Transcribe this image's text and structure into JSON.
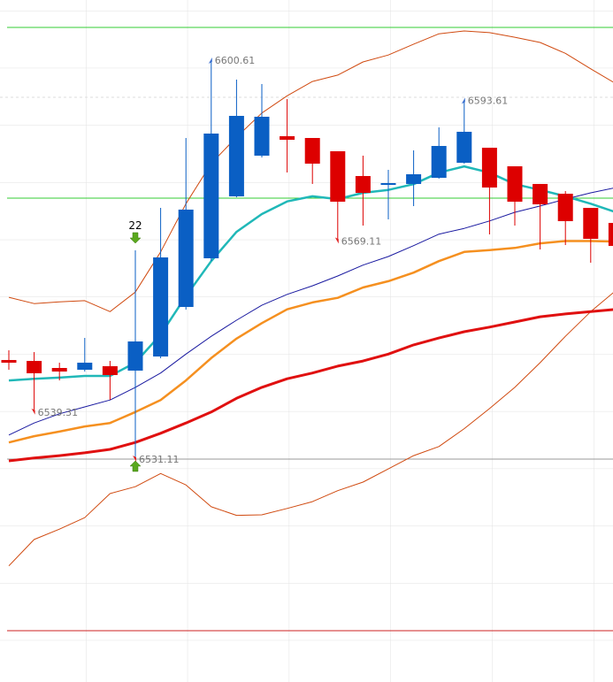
{
  "chart_data": {
    "type": "candlestick",
    "ylim": [
      6492.27,
      6611.09
    ],
    "up_color": "#0a5fc4",
    "down_color": "#dd0000",
    "open": [
      6548.37,
      6548.21,
      6546.98,
      6546.67,
      6547.29,
      6546.52,
      6548.98,
      6557.61,
      6566.09,
      6576.88,
      6583.97,
      6587.36,
      6587.05,
      6584.74,
      6580.42,
      6578.88,
      6579.04,
      6580.11,
      6582.73,
      6585.35,
      6582.12,
      6579.04,
      6577.34,
      6574.87,
      6572.25
    ],
    "high": [
      6550.06,
      6549.75,
      6547.9,
      6552.22,
      6548.21,
      6567.48,
      6574.87,
      6587.05,
      6600.61,
      6597.22,
      6596.45,
      6593.83,
      6587.05,
      6584.74,
      6583.97,
      6581.5,
      6584.89,
      6588.9,
      6593.61,
      6585.35,
      6582.12,
      6579.04,
      6577.8,
      6574.87,
      6574.1
    ],
    "low": [
      6546.67,
      6539.31,
      6544.82,
      6546.36,
      6541.43,
      6531.11,
      6548.68,
      6557.15,
      6565.63,
      6576.72,
      6583.66,
      6581.04,
      6579.04,
      6569.11,
      6571.79,
      6572.87,
      6575.18,
      6579.96,
      6582.58,
      6570.25,
      6571.79,
      6567.63,
      6568.4,
      6565.32,
      6567.94
    ],
    "close": [
      6547.9,
      6546.06,
      6546.36,
      6547.9,
      6545.75,
      6551.6,
      6566.24,
      6574.57,
      6587.82,
      6590.9,
      6590.75,
      6586.74,
      6582.58,
      6575.95,
      6577.49,
      6579.19,
      6580.73,
      6585.66,
      6588.13,
      6578.42,
      6575.95,
      6575.49,
      6572.56,
      6569.48,
      6568.25
    ],
    "lines": [
      {
        "color": "#d04a10",
        "width": 1,
        "values": [
          6559.3,
          6558.2,
          6558.5,
          6558.7,
          6556.8,
          6560.2,
          6567.2,
          6575.6,
          6582.6,
          6587.2,
          6591.4,
          6594.4,
          6596.9,
          6598.0,
          6600.3,
          6601.5,
          6603.4,
          6605.2,
          6605.7,
          6605.4,
          6604.6,
          6603.7,
          6601.8,
          6599.1,
          6596.5
        ]
      },
      {
        "color": "#d04a10",
        "width": 1,
        "values": [
          6512.5,
          6517.1,
          6518.9,
          6520.9,
          6525.1,
          6526.3,
          6528.6,
          6526.6,
          6522.8,
          6521.3,
          6521.4,
          6522.5,
          6523.7,
          6525.6,
          6527.1,
          6529.4,
          6531.7,
          6533.3,
          6536.4,
          6539.9,
          6543.6,
          6547.9,
          6552.5,
          6556.8,
          6560.5
        ]
      },
      {
        "color": "#e01010",
        "width": 3,
        "values": [
          6530.8,
          6531.3,
          6531.7,
          6532.2,
          6532.8,
          6534.0,
          6535.6,
          6537.4,
          6539.3,
          6541.7,
          6543.6,
          6545.1,
          6546.1,
          6547.3,
          6548.2,
          6549.4,
          6551.0,
          6552.2,
          6553.3,
          6554.1,
          6555.0,
          6555.9,
          6556.4,
          6556.8,
          6557.2
        ]
      },
      {
        "color": "#f59020",
        "width": 2.5,
        "values": [
          6534.0,
          6535.1,
          6535.9,
          6536.8,
          6537.4,
          6539.3,
          6541.4,
          6544.8,
          6548.7,
          6552.1,
          6554.8,
          6557.2,
          6558.4,
          6559.2,
          6561.0,
          6562.1,
          6563.6,
          6565.6,
          6567.2,
          6567.5,
          6567.9,
          6568.7,
          6569.1,
          6569.1,
          6569.0
        ]
      },
      {
        "color": "#1a1aa0",
        "width": 1,
        "values": [
          6535.3,
          6537.4,
          6539.0,
          6540.2,
          6541.4,
          6543.6,
          6546.1,
          6549.4,
          6552.5,
          6555.3,
          6557.9,
          6559.8,
          6561.3,
          6563.0,
          6564.9,
          6566.4,
          6568.3,
          6570.3,
          6571.3,
          6572.6,
          6574.1,
          6575.2,
          6576.4,
          6577.5,
          6578.4
        ]
      },
      {
        "color": "#20b8b8",
        "width": 2.5,
        "values": [
          6544.8,
          6545.1,
          6545.3,
          6545.6,
          6545.6,
          6547.9,
          6552.8,
          6559.5,
          6565.6,
          6570.7,
          6573.8,
          6576.0,
          6576.9,
          6576.4,
          6577.5,
          6578.0,
          6579.0,
          6581.0,
          6582.1,
          6581.0,
          6579.0,
          6578.0,
          6576.9,
          6575.6,
          6574.1
        ]
      }
    ],
    "levels": [
      {
        "color": "#33cc33",
        "value": 6606.31
      },
      {
        "color": "#33cc33",
        "value": 6576.57
      },
      {
        "color": "#999999",
        "value": 6531.11
      },
      {
        "color": "#cc2222",
        "value": 6501.21
      }
    ],
    "annotations": [
      {
        "text": "6600.61"
      },
      {
        "text": "6593.61"
      },
      {
        "text": "6569.11"
      },
      {
        "text": "6539.31"
      },
      {
        "text": "6531.11"
      }
    ],
    "signal": {
      "text": "22",
      "color": "#5aa81e"
    }
  }
}
